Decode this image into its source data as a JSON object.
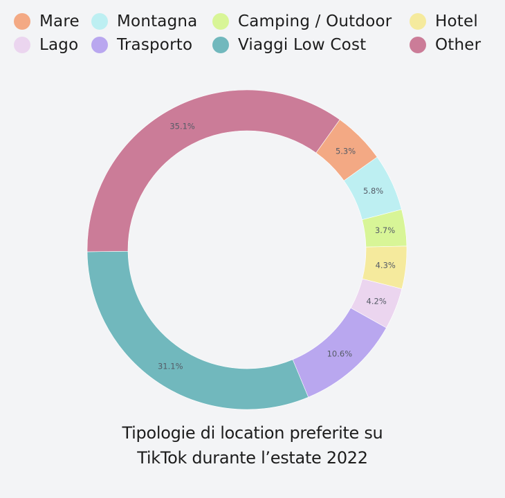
{
  "chart_data": {
    "type": "pie",
    "variant": "donut",
    "title_lines": [
      "Tipologie di location preferite su",
      "TikTok durante l’estate 2022"
    ],
    "legend_placement": "top",
    "slices": [
      {
        "name": "Mare",
        "value": 5.3,
        "label": "5.3%",
        "color": "#f3a984"
      },
      {
        "name": "Montagna",
        "value": 5.8,
        "label": "5.8%",
        "color": "#bdeff2"
      },
      {
        "name": "Camping / Outdoor",
        "value": 3.7,
        "label": "3.7%",
        "color": "#d8f597"
      },
      {
        "name": "Hotel",
        "value": 4.3,
        "label": "4.3%",
        "color": "#f5ea9d"
      },
      {
        "name": "Lago",
        "value": 4.2,
        "label": "4.2%",
        "color": "#ebd5ef"
      },
      {
        "name": "Trasporto",
        "value": 10.6,
        "label": "10.6%",
        "color": "#b9a7ef"
      },
      {
        "name": "Viaggi Low Cost",
        "value": 31.1,
        "label": "31.1%",
        "color": "#71b8bd"
      },
      {
        "name": "Other",
        "value": 35.1,
        "label": "35.1%",
        "color": "#cb7c98"
      }
    ]
  }
}
